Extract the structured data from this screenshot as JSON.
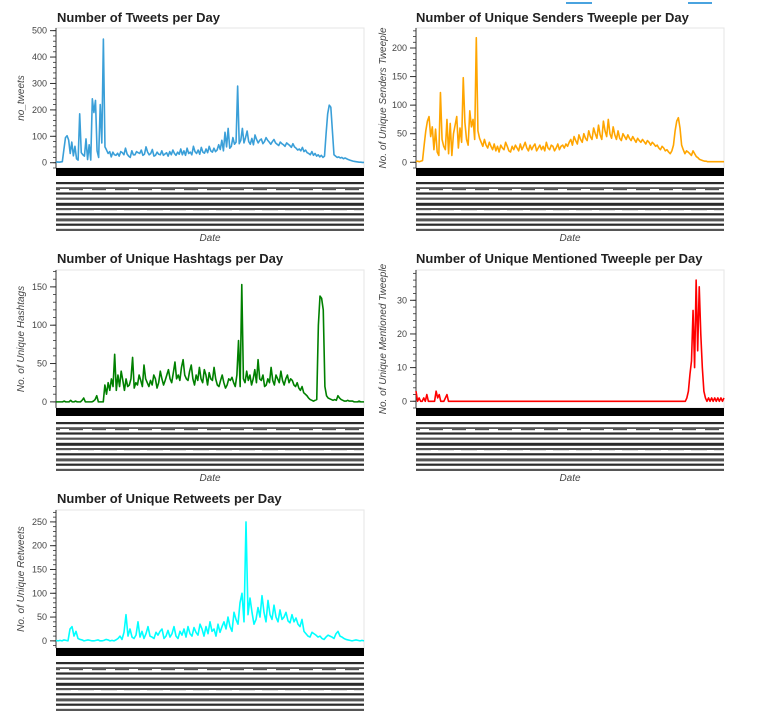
{
  "colors": {
    "tweets": "#3a9fd8",
    "senders": "#ffa500",
    "hashtags": "#008000",
    "mentioned": "#ff0000",
    "retweets": "#00ffff"
  },
  "chart_data": [
    {
      "type": "line",
      "title": "Number of Tweets per Day",
      "xlabel": "Date",
      "ylabel": "no_tweets",
      "ylim": [
        -20,
        510
      ],
      "yticks": [
        0,
        100,
        200,
        300,
        400,
        500
      ],
      "color_key": "tweets",
      "series": [
        {
          "name": "",
          "y": [
            2,
            3,
            2,
            3,
            4,
            50,
            95,
            102,
            86,
            35,
            78,
            26,
            62,
            15,
            10,
            185,
            38,
            30,
            25,
            90,
            12,
            68,
            10,
            242,
            190,
            236,
            45,
            20,
            220,
            75,
            468,
            60,
            48,
            35,
            42,
            22,
            40,
            30,
            28,
            36,
            25,
            42,
            38,
            30,
            55,
            33,
            25,
            20,
            45,
            30,
            30,
            42,
            38,
            35,
            48,
            28,
            32,
            60,
            40,
            30,
            35,
            50,
            25,
            28,
            40,
            32,
            30,
            45,
            28,
            33,
            38,
            25,
            42,
            30,
            48,
            35,
            28,
            40,
            32,
            52,
            30,
            45,
            28,
            55,
            35,
            40,
            30,
            62,
            42,
            35,
            48,
            32,
            58,
            40,
            36,
            52,
            38,
            62,
            45,
            40,
            55,
            42,
            48,
            68,
            50,
            85,
            45,
            115,
            60,
            130,
            55,
            62,
            95,
            70,
            78,
            290,
            72,
            85,
            130,
            75,
            95,
            120,
            80,
            70,
            92,
            68,
            105,
            88,
            75,
            85,
            90,
            72,
            80,
            95,
            85,
            78,
            70,
            80,
            88,
            75,
            70,
            65,
            78,
            72,
            68,
            62,
            75,
            70,
            65,
            58,
            72,
            60,
            55,
            48,
            52,
            45,
            58,
            42,
            48,
            38,
            35,
            30,
            42,
            28,
            35,
            25,
            30,
            22,
            28,
            20,
            25,
            110,
            185,
            218,
            210,
            120,
            30,
            25,
            20,
            22,
            18,
            20,
            15,
            18,
            15,
            12,
            10,
            8,
            6,
            5,
            4,
            3,
            2,
            2,
            1,
            1
          ]
        }
      ]
    },
    {
      "type": "line",
      "title": "Number of Unique Senders Tweeple per Day",
      "xlabel": "Date",
      "ylabel": "No. of Unique Senders Tweeple",
      "ylim": [
        -10,
        235
      ],
      "yticks": [
        0,
        50,
        100,
        150,
        200
      ],
      "color_key": "senders",
      "series": [
        {
          "name": "",
          "y": [
            1,
            2,
            1,
            2,
            3,
            30,
            55,
            72,
            80,
            45,
            62,
            22,
            58,
            18,
            12,
            122,
            40,
            28,
            22,
            75,
            15,
            68,
            12,
            50,
            65,
            80,
            25,
            60,
            35,
            148,
            70,
            40,
            30,
            90,
            62,
            75,
            40,
            218,
            55,
            42,
            35,
            28,
            40,
            30,
            25,
            35,
            28,
            22,
            32,
            20,
            28,
            18,
            30,
            25,
            22,
            35,
            28,
            20,
            18,
            28,
            22,
            30,
            25,
            20,
            32,
            22,
            28,
            35,
            25,
            20,
            30,
            22,
            28,
            32,
            20,
            25,
            30,
            22,
            28,
            20,
            35,
            25,
            22,
            30,
            28,
            20,
            25,
            32,
            22,
            28,
            30,
            25,
            32,
            28,
            35,
            40,
            30,
            45,
            38,
            32,
            48,
            40,
            35,
            50,
            42,
            38,
            55,
            45,
            40,
            60,
            50,
            42,
            65,
            48,
            40,
            72,
            55,
            45,
            75,
            50,
            42,
            62,
            48,
            40,
            55,
            42,
            38,
            50,
            45,
            40,
            48,
            42,
            38,
            45,
            40,
            35,
            42,
            38,
            35,
            40,
            36,
            32,
            38,
            35,
            30,
            35,
            32,
            28,
            30,
            25,
            22,
            28,
            25,
            20,
            22,
            18,
            15,
            20,
            30,
            55,
            72,
            78,
            60,
            30,
            22,
            15,
            20,
            18,
            15,
            12,
            20,
            15,
            10,
            8,
            5,
            4,
            3,
            2,
            2,
            1,
            1,
            1,
            1,
            1,
            1,
            1,
            1,
            1,
            1,
            1
          ]
        }
      ]
    },
    {
      "type": "line",
      "title": "Number of Unique Hashtags per Day",
      "xlabel": "Date",
      "ylabel": "No. of Unique Hashtags",
      "ylim": [
        -8,
        172
      ],
      "yticks": [
        0,
        50,
        100,
        150
      ],
      "color_key": "hashtags",
      "series": [
        {
          "name": "",
          "y": [
            0,
            0,
            0,
            0,
            0,
            1,
            0,
            0,
            0,
            2,
            0,
            0,
            1,
            0,
            0,
            0,
            2,
            5,
            0,
            0,
            0,
            0,
            0,
            1,
            3,
            8,
            0,
            0,
            0,
            0,
            22,
            10,
            25,
            15,
            30,
            20,
            62,
            15,
            35,
            20,
            40,
            28,
            15,
            30,
            20,
            22,
            30,
            58,
            18,
            25,
            22,
            35,
            28,
            20,
            48,
            30,
            25,
            20,
            28,
            22,
            35,
            30,
            18,
            25,
            40,
            30,
            22,
            28,
            35,
            42,
            30,
            25,
            38,
            52,
            30,
            35,
            28,
            45,
            55,
            35,
            30,
            28,
            40,
            48,
            30,
            22,
            35,
            28,
            45,
            30,
            25,
            42,
            35,
            22,
            38,
            30,
            28,
            45,
            30,
            22,
            20,
            28,
            35,
            25,
            18,
            22,
            30,
            28,
            32,
            25,
            20,
            35,
            80,
            20,
            153,
            30,
            25,
            40,
            28,
            35,
            22,
            30,
            42,
            25,
            55,
            30,
            28,
            35,
            20,
            22,
            30,
            25,
            45,
            28,
            22,
            35,
            30,
            25,
            40,
            28,
            22,
            30,
            35,
            25,
            30,
            28,
            22,
            20,
            25,
            18,
            15,
            20,
            12,
            10,
            8,
            5,
            3,
            2,
            1,
            2,
            3,
            100,
            138,
            135,
            120,
            20,
            8,
            5,
            4,
            3,
            2,
            3,
            2,
            8,
            5,
            3,
            2,
            1,
            1,
            2,
            1,
            1,
            1,
            0,
            0,
            0,
            1,
            0,
            0,
            0
          ]
        }
      ]
    },
    {
      "type": "line",
      "title": "Number of Unique Mentioned Tweeple per Day",
      "xlabel": "Date",
      "ylabel": "No. of Unique Mentioned Tweeple",
      "ylim": [
        -2,
        39
      ],
      "yticks": [
        0,
        10,
        20,
        30
      ],
      "color_key": "mentioned",
      "series": [
        {
          "name": "",
          "y": [
            3,
            0,
            1,
            0,
            0,
            1,
            0,
            2,
            0,
            0,
            0,
            0,
            0,
            3,
            1,
            2,
            0,
            0,
            0,
            1,
            2,
            0,
            0,
            0,
            0,
            0,
            0,
            0,
            0,
            0,
            0,
            0,
            0,
            0,
            0,
            0,
            0,
            0,
            0,
            0,
            0,
            0,
            0,
            0,
            0,
            0,
            0,
            0,
            0,
            0,
            0,
            0,
            0,
            0,
            0,
            0,
            0,
            0,
            0,
            0,
            0,
            0,
            0,
            0,
            0,
            0,
            0,
            0,
            0,
            0,
            0,
            0,
            0,
            0,
            0,
            0,
            0,
            0,
            0,
            0,
            0,
            0,
            0,
            0,
            0,
            0,
            0,
            0,
            0,
            0,
            0,
            0,
            0,
            0,
            0,
            0,
            0,
            0,
            0,
            0,
            0,
            0,
            0,
            0,
            0,
            0,
            0,
            0,
            0,
            0,
            0,
            0,
            0,
            0,
            0,
            0,
            0,
            0,
            0,
            0,
            0,
            0,
            0,
            0,
            0,
            0,
            0,
            0,
            0,
            0,
            0,
            0,
            0,
            0,
            0,
            0,
            0,
            0,
            0,
            0,
            0,
            0,
            0,
            0,
            0,
            0,
            0,
            0,
            0,
            0,
            0,
            0,
            0,
            0,
            0,
            0,
            0,
            0,
            0,
            0,
            0,
            0,
            0,
            0,
            0,
            0,
            0,
            0,
            0,
            0,
            0,
            0,
            0,
            0,
            0,
            1,
            3,
            8,
            12,
            27,
            10,
            36,
            15,
            34,
            20,
            10,
            3,
            1,
            0,
            1,
            0,
            1,
            0,
            1,
            0,
            1,
            0,
            1,
            0,
            1
          ]
        }
      ]
    },
    {
      "type": "line",
      "title": "Number of Unique Retweets per Day",
      "xlabel": "Date",
      "ylabel": "No. of Unique Retweets",
      "ylim": [
        -15,
        275
      ],
      "yticks": [
        0,
        50,
        100,
        150,
        200,
        250
      ],
      "color_key": "retweets",
      "series": [
        {
          "name": "",
          "y": [
            1,
            0,
            1,
            0,
            2,
            1,
            0,
            25,
            30,
            10,
            20,
            5,
            3,
            2,
            0,
            1,
            2,
            1,
            0,
            0,
            1,
            2,
            0,
            0,
            1,
            3,
            2,
            0,
            1,
            0,
            2,
            5,
            10,
            3,
            18,
            55,
            10,
            25,
            8,
            5,
            12,
            40,
            8,
            20,
            5,
            15,
            30,
            10,
            8,
            5,
            18,
            12,
            20,
            25,
            5,
            10,
            22,
            8,
            15,
            30,
            10,
            5,
            20,
            12,
            25,
            8,
            30,
            15,
            10,
            28,
            18,
            12,
            35,
            25,
            10,
            30,
            15,
            40,
            20,
            25,
            10,
            35,
            18,
            30,
            40,
            25,
            50,
            30,
            20,
            60,
            45,
            35,
            80,
            100,
            40,
            250,
            55,
            90,
            60,
            35,
            45,
            70,
            50,
            95,
            60,
            40,
            85,
            55,
            45,
            75,
            50,
            40,
            65,
            45,
            50,
            60,
            42,
            38,
            55,
            40,
            48,
            35,
            30,
            45,
            20,
            15,
            10,
            8,
            18,
            15,
            12,
            8,
            10,
            5,
            3,
            8,
            12,
            10,
            8,
            5,
            15,
            20,
            10,
            8,
            5,
            3,
            2,
            1,
            0,
            1,
            2,
            1,
            0,
            1,
            0
          ]
        }
      ]
    }
  ]
}
